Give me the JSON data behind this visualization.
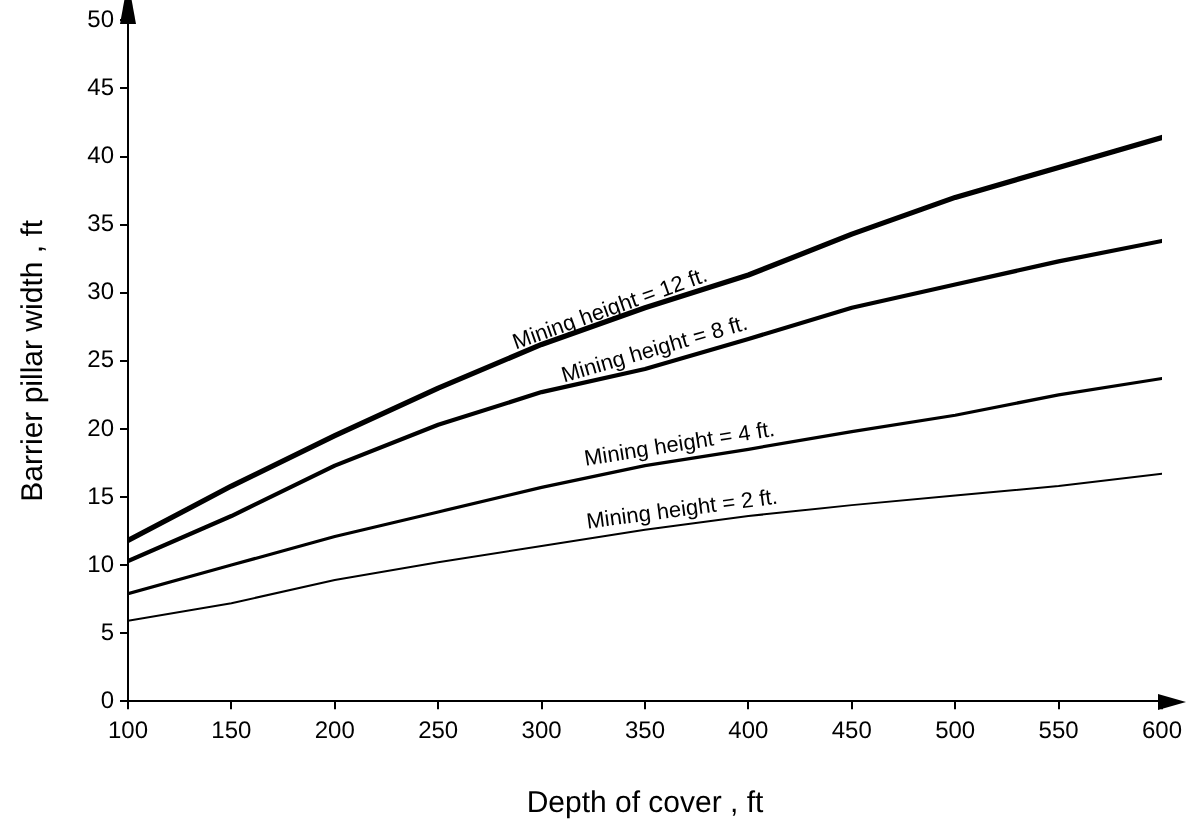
{
  "chart_data": {
    "type": "line",
    "xlabel": "Depth of cover , ft",
    "ylabel": "Barrier pillar width , ft",
    "x": [
      100,
      150,
      200,
      250,
      300,
      350,
      400,
      450,
      500,
      550,
      600
    ],
    "series": [
      {
        "color": "#000000",
        "values": [
          11.8,
          15.8,
          19.5,
          23.0,
          26.2,
          28.9,
          31.3,
          34.3,
          37.0,
          39.2,
          41.4
        ]
      },
      {
        "color": "#000000",
        "values": [
          10.3,
          13.6,
          17.3,
          20.3,
          22.7,
          24.4,
          26.6,
          28.9,
          30.6,
          32.3,
          33.8
        ]
      },
      {
        "color": "#000000",
        "values": [
          7.9,
          10.0,
          12.1,
          13.9,
          15.7,
          17.3,
          18.5,
          19.8,
          21.0,
          22.5,
          23.7
        ]
      },
      {
        "color": "#000000",
        "values": [
          5.9,
          7.2,
          8.9,
          10.2,
          11.4,
          12.6,
          13.6,
          14.4,
          15.1,
          15.8,
          16.7
        ]
      }
    ],
    "annotations": [
      {
        "text": "Mining height = 12 ft.",
        "x": 336,
        "y": 27.6
      },
      {
        "text": "Mining height = 8 ft.",
        "x": 357,
        "y": 24.6
      },
      {
        "text": "Mining height = 4 ft.",
        "x": 368,
        "y": 17.6
      },
      {
        "text": "Mining height = 2 ft.",
        "x": 369,
        "y": 12.8
      }
    ],
    "xlim": [
      100,
      600
    ],
    "xticks": [
      100,
      150,
      200,
      250,
      300,
      350,
      400,
      450,
      500,
      550,
      600
    ],
    "ylim": [
      0,
      50
    ],
    "yticks": [
      0,
      5,
      10,
      15,
      20,
      25,
      30,
      35,
      40,
      45,
      50
    ],
    "grid": false,
    "legend": false,
    "marker": "none",
    "line_style": "solid"
  }
}
